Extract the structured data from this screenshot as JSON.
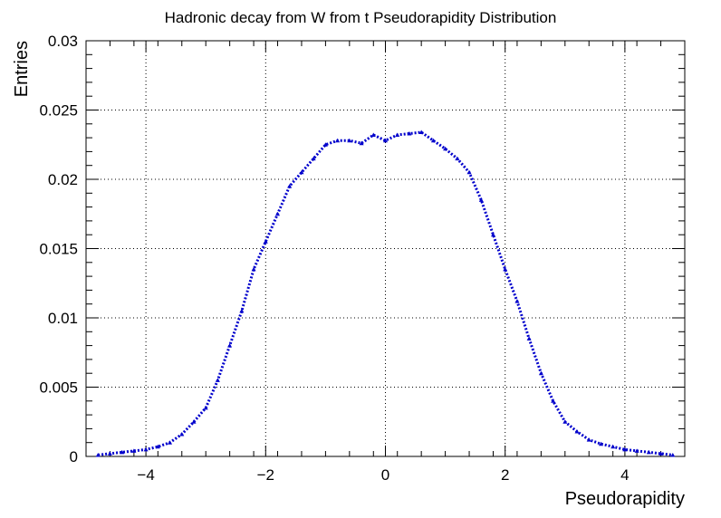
{
  "chart_data": {
    "type": "line",
    "title": "Hadronic decay from W from t Pseudorapidity Distribution",
    "xlabel": "Pseudorapidity",
    "ylabel": "Entries",
    "xlim": [
      -5,
      5
    ],
    "ylim": [
      0,
      0.03
    ],
    "grid": true,
    "line_style": "dotted",
    "marker": "triangle",
    "series_color": "#0000cc",
    "x_ticks": [
      -4,
      -2,
      0,
      2,
      4
    ],
    "x_tick_labels": [
      "−4",
      "−2",
      "0",
      "2",
      "4"
    ],
    "y_ticks": [
      0,
      0.005,
      0.01,
      0.015,
      0.02,
      0.025,
      0.03
    ],
    "y_tick_labels": [
      "0",
      "0.005",
      "0.01",
      "0.015",
      "0.02",
      "0.025",
      "0.03"
    ],
    "series": [
      {
        "x": [
          -4.8,
          -4.6,
          -4.4,
          -4.2,
          -4.0,
          -3.8,
          -3.6,
          -3.4,
          -3.2,
          -3.0,
          -2.8,
          -2.6,
          -2.4,
          -2.2,
          -2.0,
          -1.8,
          -1.6,
          -1.4,
          -1.2,
          -1.0,
          -0.8,
          -0.6,
          -0.4,
          -0.2,
          0.0,
          0.2,
          0.4,
          0.6,
          0.8,
          1.0,
          1.2,
          1.4,
          1.6,
          1.8,
          2.0,
          2.2,
          2.4,
          2.6,
          2.8,
          3.0,
          3.2,
          3.4,
          3.6,
          3.8,
          4.0,
          4.2,
          4.4,
          4.6,
          4.8
        ],
        "y": [
          0.0001,
          0.0002,
          0.0003,
          0.0004,
          0.0005,
          0.0007,
          0.001,
          0.0016,
          0.0025,
          0.0035,
          0.0055,
          0.008,
          0.0105,
          0.0135,
          0.0155,
          0.0175,
          0.0195,
          0.0205,
          0.0215,
          0.0225,
          0.0228,
          0.0228,
          0.0226,
          0.0232,
          0.0228,
          0.0232,
          0.0233,
          0.0234,
          0.0228,
          0.0222,
          0.0215,
          0.0205,
          0.0185,
          0.016,
          0.0135,
          0.0112,
          0.0085,
          0.006,
          0.004,
          0.0025,
          0.0018,
          0.0012,
          0.0009,
          0.0007,
          0.0005,
          0.0004,
          0.0003,
          0.0002,
          0.0001
        ]
      }
    ]
  }
}
